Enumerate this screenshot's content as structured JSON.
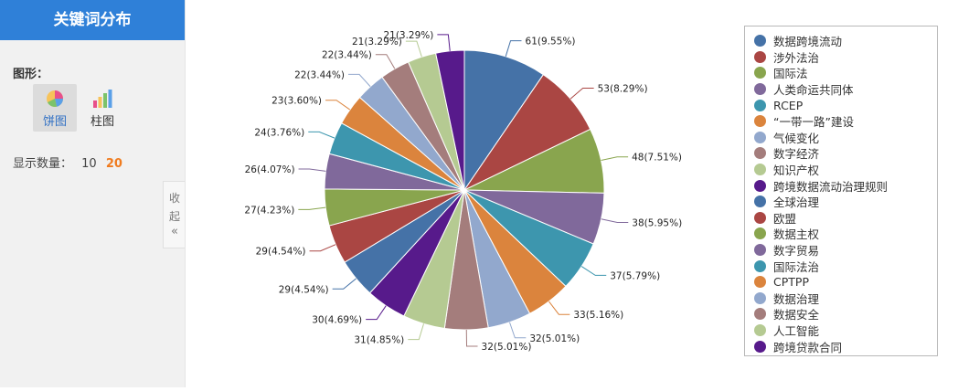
{
  "sidebar": {
    "title": "关键词分布",
    "graph_label": "图形：",
    "chart_types": [
      {
        "label": "饼图",
        "icon": "pie-chart-icon",
        "selected": true
      },
      {
        "label": "柱图",
        "icon": "bar-chart-icon",
        "selected": false
      }
    ],
    "count_label": "显示数量：",
    "count_options": [
      "10",
      "20"
    ],
    "count_selected": "20",
    "collapse_label": [
      "收",
      "起"
    ],
    "collapse_icon": "double-chevron-left-icon"
  },
  "chart_data": {
    "type": "pie",
    "legend_position": "right",
    "slices": [
      {
        "name": "数据跨境流动",
        "value": 61,
        "label": "61(9.55%)",
        "color": "#4572a7"
      },
      {
        "name": "涉外法治",
        "value": 53,
        "label": "53(8.29%)",
        "color": "#aa4643"
      },
      {
        "name": "国际法",
        "value": 48,
        "label": "48(7.51%)",
        "color": "#89a54e"
      },
      {
        "name": "人类命运共同体",
        "value": 38,
        "label": "38(5.95%)",
        "color": "#80699b"
      },
      {
        "name": "RCEP",
        "value": 37,
        "label": "37(5.79%)",
        "color": "#3d96ae"
      },
      {
        "name": "“一带一路”建设",
        "value": 33,
        "label": "33(5.16%)",
        "color": "#db843d"
      },
      {
        "name": "气候变化",
        "value": 32,
        "label": "32(5.01%)",
        "color": "#92a8cd"
      },
      {
        "name": "数字经济",
        "value": 32,
        "label": "32(5.01%)",
        "color": "#a47d7c"
      },
      {
        "name": "知识产权",
        "value": 31,
        "label": "31(4.85%)",
        "color": "#b5ca92"
      },
      {
        "name": "跨境数据流动治理规则",
        "value": 30,
        "label": "30(4.69%)",
        "color": "#571a8b"
      },
      {
        "name": "全球治理",
        "value": 29,
        "label": "29(4.54%)",
        "color": "#4572a7"
      },
      {
        "name": "欧盟",
        "value": 29,
        "label": "29(4.54%)",
        "color": "#aa4643"
      },
      {
        "name": "数据主权",
        "value": 27,
        "label": "27(4.23%)",
        "color": "#89a54e"
      },
      {
        "name": "数字贸易",
        "value": 26,
        "label": "26(4.07%)",
        "color": "#80699b"
      },
      {
        "name": "国际法治",
        "value": 24,
        "label": "24(3.76%)",
        "color": "#3d96ae"
      },
      {
        "name": "CPTPP",
        "value": 23,
        "label": "23(3.60%)",
        "color": "#db843d"
      },
      {
        "name": "数据治理",
        "value": 22,
        "label": "22(3.44%)",
        "color": "#92a8cd"
      },
      {
        "name": "数据安全",
        "value": 22,
        "label": "22(3.44%)",
        "color": "#a47d7c"
      },
      {
        "name": "人工智能",
        "value": 21,
        "label": "21(3.29%)",
        "color": "#b5ca92"
      },
      {
        "name": "跨境贷款合同",
        "value": 21,
        "label": "21(3.29%)",
        "color": "#571a8b"
      }
    ]
  }
}
